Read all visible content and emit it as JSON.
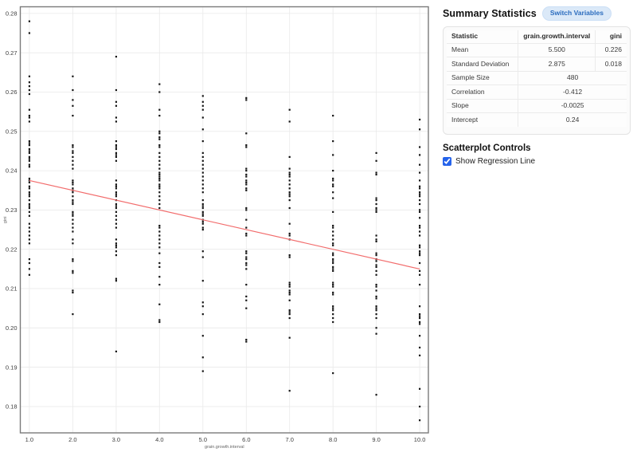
{
  "panel": {
    "summary_title": "Summary Statistics",
    "switch_button": "Switch Variables",
    "table": {
      "headers": [
        "Statistic",
        "grain.growth.interval",
        "gini"
      ],
      "rows": [
        {
          "label": "Mean",
          "values": [
            "5.500",
            "0.226"
          ],
          "span": false
        },
        {
          "label": "Standard Deviation",
          "values": [
            "2.875",
            "0.018"
          ],
          "span": false
        },
        {
          "label": "Sample Size",
          "values": [
            "480"
          ],
          "span": true
        },
        {
          "label": "Correlation",
          "values": [
            "-0.412"
          ],
          "span": true
        },
        {
          "label": "Slope",
          "values": [
            "-0.0025"
          ],
          "span": true
        },
        {
          "label": "Intercept",
          "values": [
            "0.24"
          ],
          "span": true
        }
      ]
    },
    "controls_title": "Scatterplot Controls",
    "checkbox_label": "Show Regression Line",
    "checkbox_checked": true
  },
  "chart_data": {
    "type": "scatter",
    "title": "",
    "xlabel": "grain.growth.interval",
    "ylabel": "gini",
    "xlim": [
      0.79,
      10.2
    ],
    "ylim": [
      0.1733,
      0.2817
    ],
    "xticks": [
      1,
      2,
      3,
      4,
      5,
      6,
      7,
      8,
      9,
      10
    ],
    "yticks": [
      0.18,
      0.19,
      0.2,
      0.21,
      0.22,
      0.23,
      0.24,
      0.25,
      0.26,
      0.27,
      0.28
    ],
    "grid": true,
    "legend": "none",
    "point_color": "#141414",
    "point_size": 2.2,
    "grid_color": "#e9e9e9",
    "border_color": "#7a7a7a",
    "regression": {
      "show": true,
      "slope": -0.0025,
      "intercept": 0.24,
      "x_range": [
        1,
        10
      ],
      "color": "#f26c6c"
    },
    "columns": [
      {
        "x": 1,
        "gini": [
          0.278,
          0.275,
          0.264,
          0.2625,
          0.2615,
          0.2605,
          0.2595,
          0.2555,
          0.254,
          0.2535,
          0.2525,
          0.2475,
          0.247,
          0.2465,
          0.2455,
          0.245,
          0.2445,
          0.2435,
          0.243,
          0.2425,
          0.2415,
          0.241,
          0.238,
          0.2375,
          0.237,
          0.236,
          0.2355,
          0.2345,
          0.234,
          0.2335,
          0.2325,
          0.2315,
          0.231,
          0.2305,
          0.2295,
          0.2285,
          0.2265,
          0.2255,
          0.2245,
          0.2235,
          0.2225,
          0.2215,
          0.2175,
          0.2165,
          0.215,
          0.2135
        ]
      },
      {
        "x": 2,
        "gini": [
          0.264,
          0.2605,
          0.258,
          0.2565,
          0.254,
          0.2465,
          0.246,
          0.245,
          0.2445,
          0.2435,
          0.2425,
          0.2415,
          0.2405,
          0.2375,
          0.237,
          0.2365,
          0.2355,
          0.235,
          0.2345,
          0.2335,
          0.2325,
          0.232,
          0.2315,
          0.2295,
          0.229,
          0.2285,
          0.2275,
          0.2265,
          0.2255,
          0.2245,
          0.2225,
          0.2215,
          0.2175,
          0.217,
          0.2145,
          0.214,
          0.2095,
          0.209,
          0.2035
        ]
      },
      {
        "x": 3,
        "gini": [
          0.269,
          0.2605,
          0.2575,
          0.2565,
          0.2535,
          0.2525,
          0.2475,
          0.2465,
          0.246,
          0.2455,
          0.2445,
          0.244,
          0.2435,
          0.2425,
          0.2375,
          0.2365,
          0.236,
          0.2355,
          0.2345,
          0.234,
          0.2335,
          0.2325,
          0.2315,
          0.231,
          0.2305,
          0.2295,
          0.2285,
          0.2275,
          0.2265,
          0.2255,
          0.2225,
          0.2215,
          0.221,
          0.2205,
          0.2195,
          0.2185,
          0.2125,
          0.212,
          0.194
        ]
      },
      {
        "x": 4,
        "gini": [
          0.262,
          0.26,
          0.2555,
          0.254,
          0.25,
          0.2495,
          0.2485,
          0.248,
          0.2465,
          0.246,
          0.2445,
          0.2435,
          0.2425,
          0.2415,
          0.2405,
          0.2395,
          0.239,
          0.2385,
          0.238,
          0.2375,
          0.2365,
          0.236,
          0.2355,
          0.2345,
          0.2335,
          0.2325,
          0.2315,
          0.2305,
          0.226,
          0.2255,
          0.2245,
          0.2235,
          0.2225,
          0.2215,
          0.2205,
          0.219,
          0.2165,
          0.2155,
          0.213,
          0.211,
          0.206,
          0.202,
          0.2015
        ]
      },
      {
        "x": 5,
        "gini": [
          0.259,
          0.2575,
          0.2565,
          0.2555,
          0.2535,
          0.2505,
          0.2475,
          0.2445,
          0.2435,
          0.2425,
          0.2415,
          0.2405,
          0.2395,
          0.2385,
          0.2375,
          0.2365,
          0.2355,
          0.2345,
          0.2325,
          0.2315,
          0.231,
          0.2305,
          0.2295,
          0.229,
          0.2285,
          0.2275,
          0.227,
          0.2265,
          0.2255,
          0.225,
          0.2195,
          0.218,
          0.212,
          0.2065,
          0.2055,
          0.2035,
          0.198,
          0.1925,
          0.189
        ]
      },
      {
        "x": 6,
        "gini": [
          0.2585,
          0.258,
          0.2495,
          0.2465,
          0.246,
          0.2405,
          0.24,
          0.239,
          0.2385,
          0.2375,
          0.237,
          0.2365,
          0.2355,
          0.235,
          0.2305,
          0.23,
          0.2275,
          0.2255,
          0.224,
          0.2235,
          0.2195,
          0.219,
          0.218,
          0.2175,
          0.2165,
          0.216,
          0.215,
          0.211,
          0.208,
          0.207,
          0.205,
          0.197,
          0.1965
        ]
      },
      {
        "x": 7,
        "gini": [
          0.2555,
          0.2525,
          0.2435,
          0.2405,
          0.2395,
          0.239,
          0.2385,
          0.2375,
          0.2365,
          0.2355,
          0.2345,
          0.234,
          0.2335,
          0.2325,
          0.2305,
          0.2265,
          0.224,
          0.2235,
          0.2225,
          0.2185,
          0.218,
          0.2115,
          0.211,
          0.2105,
          0.2095,
          0.209,
          0.2085,
          0.207,
          0.2045,
          0.204,
          0.2035,
          0.2025,
          0.1975,
          0.184
        ]
      },
      {
        "x": 8,
        "gini": [
          0.254,
          0.2475,
          0.244,
          0.24,
          0.238,
          0.2375,
          0.2365,
          0.236,
          0.2345,
          0.233,
          0.2295,
          0.226,
          0.2255,
          0.2245,
          0.2235,
          0.2225,
          0.2215,
          0.221,
          0.219,
          0.2185,
          0.2175,
          0.217,
          0.2165,
          0.2155,
          0.215,
          0.2145,
          0.2115,
          0.211,
          0.2105,
          0.209,
          0.2085,
          0.2055,
          0.205,
          0.2045,
          0.2035,
          0.2025,
          0.2015,
          0.1885
        ]
      },
      {
        "x": 9,
        "gini": [
          0.2445,
          0.2425,
          0.2395,
          0.239,
          0.233,
          0.2325,
          0.2315,
          0.2305,
          0.23,
          0.2295,
          0.2235,
          0.2225,
          0.222,
          0.219,
          0.2185,
          0.2175,
          0.217,
          0.216,
          0.2155,
          0.2145,
          0.2135,
          0.211,
          0.2105,
          0.2095,
          0.208,
          0.2075,
          0.2055,
          0.205,
          0.2045,
          0.2035,
          0.2025,
          0.2,
          0.1985,
          0.183
        ]
      },
      {
        "x": 10,
        "gini": [
          0.253,
          0.2505,
          0.246,
          0.244,
          0.2415,
          0.2395,
          0.2375,
          0.236,
          0.2355,
          0.2345,
          0.234,
          0.2335,
          0.2325,
          0.2315,
          0.23,
          0.2295,
          0.228,
          0.226,
          0.2255,
          0.2245,
          0.2235,
          0.221,
          0.2205,
          0.2195,
          0.219,
          0.2185,
          0.2165,
          0.2145,
          0.2135,
          0.211,
          0.2055,
          0.2035,
          0.203,
          0.2025,
          0.2015,
          0.201,
          0.198,
          0.195,
          0.193,
          0.1845,
          0.18,
          0.1765
        ]
      }
    ]
  }
}
